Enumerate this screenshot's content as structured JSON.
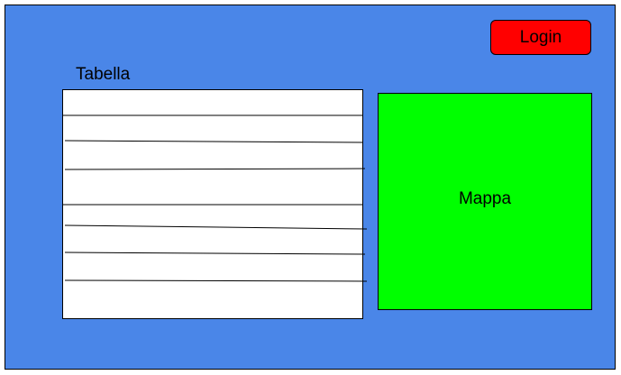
{
  "colors": {
    "background": "#4a86e8",
    "login_button": "#ff0000",
    "map": "#00ff00",
    "table": "#ffffff"
  },
  "header": {
    "login_label": "Login"
  },
  "table": {
    "title": "Tabella",
    "row_count": 8
  },
  "map": {
    "label": "Mappa"
  }
}
